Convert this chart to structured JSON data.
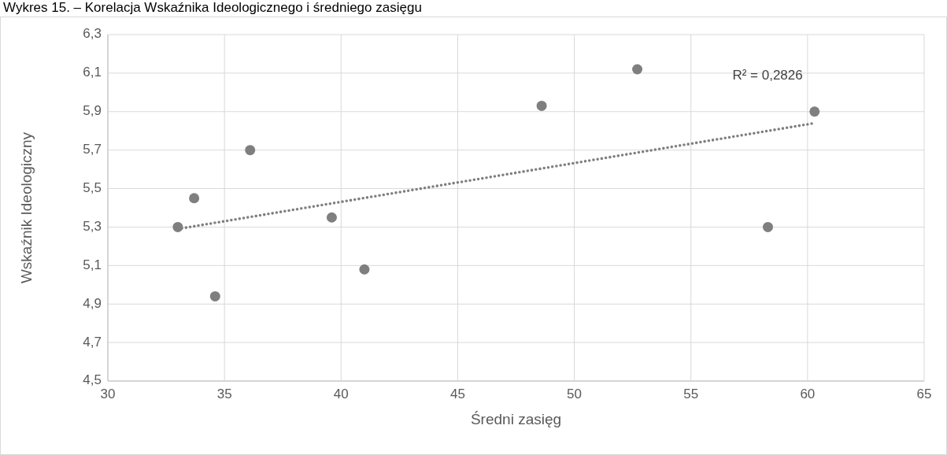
{
  "chart_data": {
    "type": "scatter",
    "title": "Wykres 15. – Korelacja Wskaźnika Ideologicznego i średniego zasięgu",
    "xlabel": "Średni zasięg",
    "ylabel": "Wskaźnik Ideologiczny",
    "annotations": [
      "R² = 0,2826"
    ],
    "xlim": [
      30,
      65
    ],
    "xticks": [
      30,
      35,
      40,
      45,
      50,
      55,
      60,
      65
    ],
    "ylim": [
      4.5,
      6.3
    ],
    "yticks": [
      {
        "value": 4.5,
        "label": "4,5"
      },
      {
        "value": 4.7,
        "label": "4,7"
      },
      {
        "value": 4.9,
        "label": "4,9"
      },
      {
        "value": 5.1,
        "label": "5,1"
      },
      {
        "value": 5.3,
        "label": "5,3"
      },
      {
        "value": 5.5,
        "label": "5,5"
      },
      {
        "value": 5.7,
        "label": "5,7"
      },
      {
        "value": 5.9,
        "label": "5,9"
      },
      {
        "value": 6.1,
        "label": "6,1"
      },
      {
        "value": 6.3,
        "label": "6,3"
      }
    ],
    "grid": true,
    "marker": "circle",
    "series": [
      {
        "color": "#7f7f7f",
        "x": [
          33.0,
          33.7,
          36.1,
          34.6,
          39.6,
          41.0,
          48.6,
          52.7,
          58.3,
          60.3
        ],
        "values": [
          5.3,
          5.45,
          5.7,
          4.94,
          5.35,
          5.08,
          5.93,
          6.12,
          5.3,
          5.9
        ]
      },
      {
        "type": "line",
        "color": "#7f7f7f",
        "line_style": "dotted",
        "marker": "none",
        "x": [
          33.0,
          60.3
        ],
        "values": [
          5.29,
          5.84
        ]
      }
    ]
  }
}
